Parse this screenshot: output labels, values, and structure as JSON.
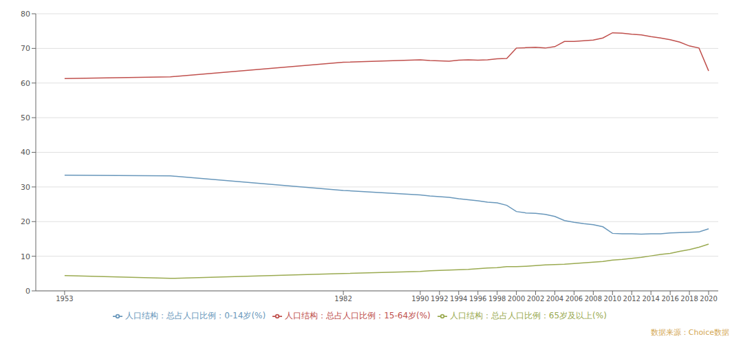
{
  "chart_data": {
    "type": "line",
    "x": [
      1953,
      1964,
      1982,
      1990,
      1991,
      1992,
      1993,
      1994,
      1995,
      1996,
      1997,
      1998,
      1999,
      2000,
      2001,
      2002,
      2003,
      2004,
      2005,
      2006,
      2007,
      2008,
      2009,
      2010,
      2011,
      2012,
      2013,
      2014,
      2015,
      2016,
      2017,
      2018,
      2019,
      2020
    ],
    "series": [
      {
        "name": "人口结构：总占人口比例：0-14岁(%)",
        "color": "#6897bb",
        "values": [
          33.4,
          33.2,
          29.0,
          27.7,
          27.4,
          27.2,
          27.0,
          26.6,
          26.3,
          26.0,
          25.6,
          25.4,
          24.7,
          22.9,
          22.5,
          22.4,
          22.1,
          21.5,
          20.3,
          19.8,
          19.4,
          19.1,
          18.5,
          16.6,
          16.5,
          16.5,
          16.4,
          16.5,
          16.5,
          16.7,
          16.8,
          16.9,
          17.0,
          17.9
        ]
      },
      {
        "name": "人口结构：总占人口比例：15-64岁(%)",
        "color": "#c0504d",
        "values": [
          61.3,
          61.8,
          66.0,
          66.7,
          66.5,
          66.4,
          66.3,
          66.6,
          66.7,
          66.6,
          66.7,
          67.0,
          67.1,
          70.1,
          70.2,
          70.3,
          70.1,
          70.5,
          72.0,
          72.0,
          72.2,
          72.4,
          73.0,
          74.5,
          74.4,
          74.1,
          73.9,
          73.4,
          73.0,
          72.5,
          71.8,
          70.7,
          70.1,
          63.5
        ]
      },
      {
        "name": "人口结构：总占人口比例：65岁及以上(%)",
        "color": "#9aaa50",
        "values": [
          4.4,
          3.6,
          5.0,
          5.6,
          5.8,
          5.9,
          6.0,
          6.1,
          6.2,
          6.4,
          6.6,
          6.7,
          7.0,
          7.0,
          7.1,
          7.3,
          7.5,
          7.6,
          7.7,
          7.9,
          8.1,
          8.3,
          8.5,
          8.9,
          9.1,
          9.4,
          9.7,
          10.1,
          10.5,
          10.8,
          11.4,
          11.9,
          12.6,
          13.5
        ]
      }
    ],
    "xlim": [
      1950,
      2021
    ],
    "xticks": [
      1953,
      1982,
      1990,
      1992,
      1994,
      1996,
      1998,
      2000,
      2002,
      2004,
      2006,
      2008,
      2010,
      2012,
      2014,
      2016,
      2018,
      2020
    ],
    "ylim": [
      0,
      80
    ],
    "yticks": [
      0,
      10,
      20,
      30,
      40,
      50,
      60,
      70,
      80
    ],
    "grid": true,
    "legend": "bottom",
    "annotation": "数据来源：Choice数据"
  }
}
